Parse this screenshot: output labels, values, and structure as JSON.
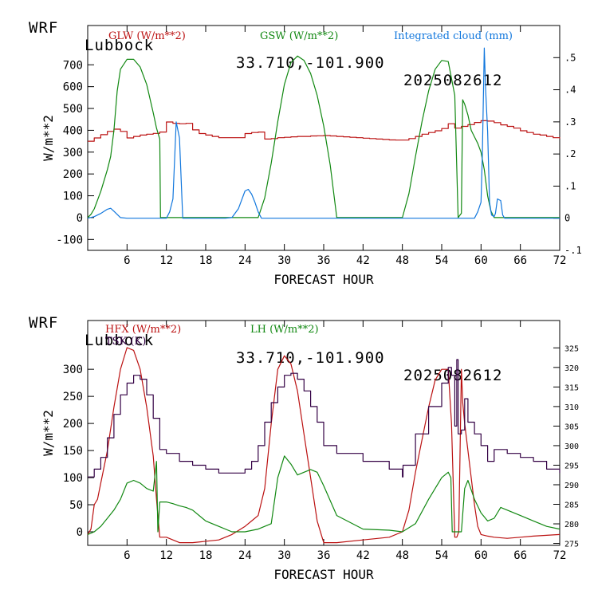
{
  "header": {
    "model": "WRF",
    "station": "Lubbock",
    "coords": "33.710,-101.900",
    "init": "2025082612"
  },
  "colors": {
    "red": "#bb1111",
    "green": "#118811",
    "blue": "#1177dd",
    "purple": "#330044"
  },
  "chart_data": [
    {
      "type": "line",
      "title": "WRF Lubbock 33.710,-101.900 2025082612",
      "xlabel": "FORECAST HOUR",
      "ylabel": "W/m**2",
      "xlim": [
        0,
        72
      ],
      "ylim": [
        -150,
        880
      ],
      "y2lim": [
        -0.1,
        0.6
      ],
      "x_ticks": [
        "6",
        "12",
        "18",
        "24",
        "30",
        "36",
        "42",
        "48",
        "54",
        "60",
        "66",
        "72"
      ],
      "y_ticks": [
        "-100",
        "0",
        "100",
        "200",
        "300",
        "400",
        "500",
        "600",
        "700"
      ],
      "y2_ticks": [
        "-.1",
        "0",
        ".1",
        ".2",
        ".3",
        ".4",
        ".5"
      ],
      "legend": [
        "GLW (W/m**2)",
        "GSW (W/m**2)",
        "Integrated cloud (mm)"
      ],
      "series": [
        {
          "name": "GLW (W/m**2)",
          "axis": "left",
          "color": "#bb1111",
          "x": [
            0,
            1,
            2,
            3,
            4,
            5,
            6,
            7,
            8,
            9,
            10,
            11,
            12,
            13,
            14,
            15,
            16,
            17,
            18,
            19,
            20,
            21,
            22,
            23,
            24,
            25,
            26,
            27,
            28,
            29,
            30,
            31,
            32,
            33,
            34,
            35,
            36,
            37,
            38,
            39,
            40,
            41,
            42,
            43,
            44,
            45,
            46,
            47,
            48,
            49,
            50,
            51,
            52,
            53,
            54,
            55,
            56,
            57,
            58,
            59,
            60,
            61,
            62,
            63,
            64,
            65,
            66,
            67,
            68,
            69,
            70,
            71,
            72
          ],
          "values": [
            350,
            365,
            380,
            395,
            405,
            395,
            365,
            372,
            378,
            382,
            386,
            392,
            438,
            432,
            430,
            432,
            402,
            385,
            378,
            372,
            366,
            366,
            366,
            366,
            385,
            390,
            392,
            360,
            362,
            366,
            368,
            370,
            372,
            372,
            374,
            375,
            376,
            374,
            372,
            370,
            368,
            366,
            364,
            362,
            360,
            358,
            356,
            355,
            355,
            362,
            372,
            382,
            390,
            398,
            408,
            430,
            410,
            418,
            426,
            436,
            444,
            442,
            435,
            425,
            418,
            410,
            398,
            390,
            382,
            378,
            372,
            366,
            362
          ]
        },
        {
          "name": "GSW (W/m**2)",
          "axis": "left",
          "color": "#118811",
          "x": [
            0,
            0.5,
            1,
            2,
            3,
            3.5,
            4,
            4.5,
            5,
            6,
            7,
            8,
            9,
            10,
            10.5,
            11,
            11.1,
            20,
            21,
            22,
            23,
            24,
            25,
            26,
            27,
            28,
            29,
            30,
            31,
            32,
            33,
            34,
            35,
            36,
            37,
            38,
            46,
            48,
            49,
            50,
            51,
            52,
            53,
            54,
            55,
            56,
            56.5,
            57,
            57.2,
            57.5,
            58,
            58.5,
            59,
            59.5,
            60,
            60.5,
            61,
            61.5,
            62,
            63,
            72
          ],
          "values": [
            0,
            15,
            40,
            120,
            220,
            280,
            400,
            580,
            680,
            725,
            725,
            690,
            610,
            480,
            410,
            360,
            0,
            0,
            0,
            0,
            0,
            0,
            0,
            0,
            90,
            250,
            440,
            610,
            710,
            740,
            720,
            660,
            560,
            420,
            240,
            0,
            0,
            0,
            110,
            280,
            440,
            580,
            680,
            720,
            715,
            560,
            0,
            20,
            540,
            520,
            470,
            400,
            370,
            340,
            300,
            220,
            100,
            30,
            0,
            0,
            0
          ]
        },
        {
          "name": "Integrated cloud (mm)",
          "axis": "right",
          "color": "#1177dd",
          "x": [
            0,
            1,
            2,
            3,
            3.5,
            4,
            4.5,
            5,
            6,
            12,
            12.5,
            13,
            13.5,
            14,
            14.5,
            20,
            21,
            22,
            23,
            24,
            24.5,
            25,
            25.5,
            26,
            26.5,
            59,
            59.5,
            60,
            60.2,
            60.5,
            60.7,
            61,
            61.3,
            61.6,
            62,
            62.2,
            62.5,
            63,
            63.3,
            63.6,
            64,
            72
          ],
          "values": [
            0,
            0.005,
            0.015,
            0.028,
            0.031,
            0.022,
            0.012,
            0.002,
            0,
            0,
            0.02,
            0.06,
            0.3,
            0.25,
            0,
            0,
            0,
            0.002,
            0.03,
            0.085,
            0.09,
            0.075,
            0.05,
            0.02,
            0,
            0,
            0.02,
            0.05,
            0.2,
            0.53,
            0.4,
            0.27,
            0.05,
            0.01,
            0.005,
            0.015,
            0.06,
            0.055,
            0.01,
            0,
            0,
            0
          ]
        }
      ]
    },
    {
      "type": "line",
      "title": "WRF Lubbock 33.710,-101.900 2025082612",
      "xlabel": "FORECAST HOUR",
      "ylabel": "W/m**2",
      "xlim": [
        0,
        72
      ],
      "ylim": [
        -25,
        390
      ],
      "y2lim": [
        274.5,
        332
      ],
      "x_ticks": [
        "6",
        "12",
        "18",
        "24",
        "30",
        "36",
        "42",
        "48",
        "54",
        "60",
        "66",
        "72"
      ],
      "y_ticks": [
        "0",
        "50",
        "100",
        "150",
        "200",
        "250",
        "300"
      ],
      "y2_ticks": [
        "275",
        "280",
        "285",
        "290",
        "295",
        "300",
        "305",
        "310",
        "315",
        "320",
        "325"
      ],
      "legend": [
        "HFX (W/m**2)",
        "LH (W/m**2)",
        "TSK (K)"
      ],
      "series": [
        {
          "name": "HFX (W/m**2)",
          "axis": "left",
          "color": "#bb1111",
          "x": [
            0,
            0.5,
            1,
            1.5,
            2,
            3,
            4,
            5,
            6,
            7,
            8,
            9,
            10,
            10.5,
            11,
            12,
            14,
            16,
            20,
            22,
            24,
            25,
            26,
            27,
            28,
            29,
            30,
            31,
            32,
            33,
            34,
            35,
            36,
            37,
            38,
            42,
            46,
            48,
            49,
            50,
            51,
            52,
            53,
            54,
            55,
            55.5,
            56,
            56.3,
            56.6,
            57,
            57.2,
            57.5,
            58,
            58.5,
            59,
            59.5,
            60,
            61,
            62,
            64,
            66,
            68,
            72
          ],
          "values": [
            -5,
            5,
            50,
            60,
            90,
            150,
            230,
            300,
            340,
            335,
            300,
            230,
            140,
            60,
            -10,
            -10,
            -20,
            -20,
            -15,
            -5,
            10,
            20,
            30,
            80,
            200,
            300,
            325,
            310,
            260,
            180,
            100,
            20,
            -20,
            -20,
            -20,
            -15,
            -10,
            0,
            40,
            110,
            170,
            230,
            280,
            300,
            300,
            200,
            -10,
            -10,
            0,
            300,
            240,
            200,
            150,
            100,
            50,
            10,
            -5,
            -8,
            -10,
            -12,
            -10,
            -8,
            -5
          ]
        },
        {
          "name": "LH (W/m**2)",
          "axis": "left",
          "color": "#118811",
          "x": [
            0,
            1,
            2,
            3,
            4,
            5,
            6,
            7,
            8,
            9,
            10,
            10.5,
            10.7,
            11,
            12,
            13,
            14,
            15,
            16,
            18,
            20,
            22,
            24,
            26,
            28,
            29,
            30,
            31,
            32,
            33,
            34,
            35,
            36,
            38,
            42,
            46,
            48,
            50,
            52,
            54,
            55,
            55.4,
            55.6,
            56,
            57,
            57.5,
            58,
            59,
            60,
            61,
            62,
            63,
            64,
            66,
            68,
            70,
            72
          ],
          "values": [
            -5,
            0,
            10,
            25,
            40,
            60,
            90,
            95,
            90,
            80,
            75,
            130,
            0,
            55,
            55,
            52,
            48,
            45,
            40,
            20,
            10,
            0,
            0,
            5,
            15,
            100,
            140,
            125,
            105,
            110,
            115,
            110,
            85,
            30,
            5,
            3,
            0,
            15,
            60,
            100,
            110,
            100,
            0,
            0,
            0,
            80,
            95,
            60,
            35,
            20,
            25,
            45,
            40,
            30,
            20,
            10,
            5
          ]
        },
        {
          "name": "TSK (K)",
          "axis": "right",
          "color": "#330044",
          "x": [
            0,
            1,
            2,
            3,
            4,
            5,
            6,
            7,
            8,
            9,
            10,
            11,
            12,
            14,
            16,
            18,
            20,
            21,
            22,
            24,
            25,
            26,
            27,
            28,
            29,
            30,
            31,
            32,
            33,
            34,
            35,
            36,
            38,
            42,
            46,
            48,
            48.1,
            50,
            52,
            54,
            55,
            55.5,
            56,
            56.3,
            56.5,
            57,
            57.5,
            58,
            59,
            60,
            61,
            62,
            64,
            66,
            68,
            70,
            72
          ],
          "values": [
            292,
            294,
            297,
            302,
            308,
            313,
            316,
            318,
            317,
            313,
            307,
            299,
            298,
            296,
            295,
            294,
            293,
            293,
            293,
            294,
            296,
            300,
            306,
            311,
            315,
            318,
            318.5,
            317,
            314,
            310,
            306,
            300,
            298,
            296,
            294,
            292,
            295,
            303,
            310,
            316,
            320,
            318,
            305,
            322,
            303,
            304,
            312,
            306,
            303,
            300,
            296,
            299,
            298,
            297,
            296,
            294,
            293
          ]
        }
      ]
    }
  ]
}
